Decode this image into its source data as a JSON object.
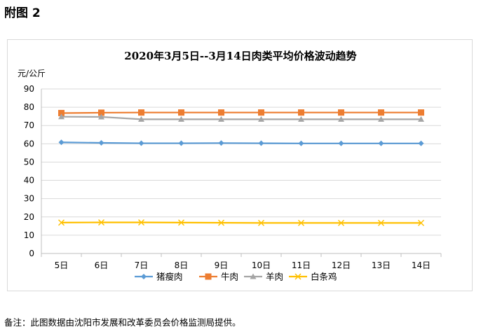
{
  "figure_label": "附图 2",
  "note": "备注：此图数据由沈阳市发展和改革委员会价格监测局提供。",
  "chart_data": {
    "type": "line",
    "title": "2020年3月5日--3月14日肉类平均价格波动趋势",
    "ylabel": "元/公斤",
    "xlabel": "",
    "categories": [
      "5日",
      "6日",
      "7日",
      "8日",
      "9日",
      "10日",
      "11日",
      "12日",
      "13日",
      "14日"
    ],
    "ylim": [
      0,
      90
    ],
    "yticks": [
      0,
      10,
      20,
      30,
      40,
      50,
      60,
      70,
      80,
      90
    ],
    "grid": true,
    "legend": "bottom",
    "series": [
      {
        "name": "猪瘦肉",
        "color": "#5b9bd5",
        "marker": "diamond",
        "values": [
          60.8,
          60.5,
          60.3,
          60.3,
          60.4,
          60.3,
          60.2,
          60.2,
          60.2,
          60.2
        ]
      },
      {
        "name": "牛肉",
        "color": "#ed7d31",
        "marker": "square",
        "values": [
          76.8,
          77.0,
          77.1,
          77.1,
          77.1,
          77.1,
          77.1,
          77.1,
          77.1,
          77.1
        ]
      },
      {
        "name": "羊肉",
        "color": "#a5a5a5",
        "marker": "triangle",
        "values": [
          74.8,
          74.7,
          73.4,
          73.4,
          73.4,
          73.4,
          73.4,
          73.4,
          73.4,
          73.4
        ]
      },
      {
        "name": "白条鸡",
        "color": "#ffc000",
        "marker": "x",
        "values": [
          16.9,
          17.0,
          17.0,
          16.9,
          16.8,
          16.7,
          16.7,
          16.7,
          16.7,
          16.7
        ]
      }
    ]
  }
}
